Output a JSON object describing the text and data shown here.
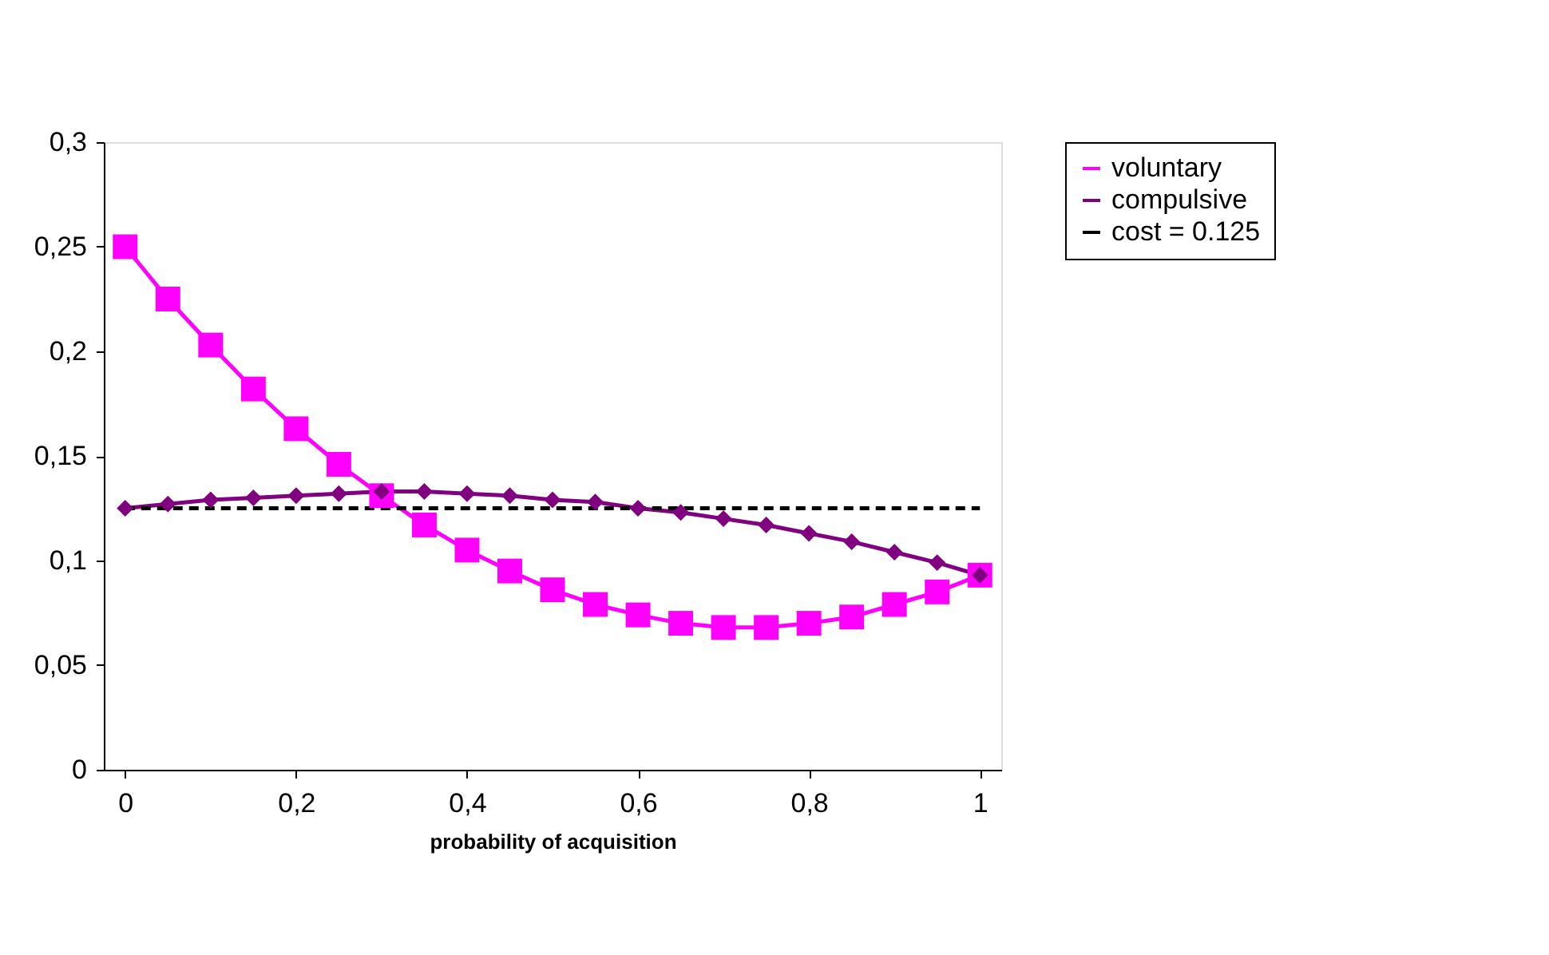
{
  "chart_data": {
    "type": "line",
    "xlabel": "probability of acquisition",
    "x": [
      0,
      0.05,
      0.1,
      0.15,
      0.2,
      0.25,
      0.3,
      0.35,
      0.4,
      0.45,
      0.5,
      0.55,
      0.6,
      0.65,
      0.7,
      0.75,
      0.8,
      0.85,
      0.9,
      0.95,
      1
    ],
    "series": [
      {
        "name": "voluntary",
        "color": "#ff00ff",
        "marker": "square",
        "line_style": "solid",
        "values": [
          0.25,
          0.225,
          0.203,
          0.182,
          0.163,
          0.146,
          0.131,
          0.117,
          0.105,
          0.095,
          0.086,
          0.079,
          0.074,
          0.07,
          0.068,
          0.068,
          0.07,
          0.073,
          0.079,
          0.085,
          0.093
        ]
      },
      {
        "name": "compulsive",
        "color": "#800080",
        "marker": "diamond",
        "line_style": "solid",
        "values": [
          0.125,
          0.127,
          0.129,
          0.13,
          0.131,
          0.132,
          0.133,
          0.133,
          0.132,
          0.131,
          0.129,
          0.128,
          0.125,
          0.123,
          0.12,
          0.117,
          0.113,
          0.109,
          0.104,
          0.099,
          0.093
        ]
      },
      {
        "name": "cost = 0.125",
        "color": "#000000",
        "marker": "none",
        "line_style": "dashed",
        "values": [
          0.125,
          0.125,
          0.125,
          0.125,
          0.125,
          0.125,
          0.125,
          0.125,
          0.125,
          0.125,
          0.125,
          0.125,
          0.125,
          0.125,
          0.125,
          0.125,
          0.125,
          0.125,
          0.125,
          0.125,
          0.125
        ]
      }
    ],
    "xlim": [
      -0.025,
      1.025
    ],
    "xticks": [
      0,
      {
        "value": 0.2,
        "label": "0,2"
      },
      {
        "value": 0.4,
        "label": "0,4"
      },
      {
        "value": 0.6,
        "label": "0,6"
      },
      {
        "value": 0.8,
        "label": "0,8"
      },
      1
    ],
    "ylim": [
      0,
      0.3
    ],
    "yticks": [
      0,
      {
        "value": 0.05,
        "label": "0,05"
      },
      {
        "value": 0.1,
        "label": "0,1"
      },
      {
        "value": 0.15,
        "label": "0,15"
      },
      {
        "value": 0.2,
        "label": "0,2"
      },
      {
        "value": 0.25,
        "label": "0,25"
      },
      {
        "value": 0.3,
        "label": "0,3"
      }
    ],
    "grid": false,
    "legend": "right"
  }
}
